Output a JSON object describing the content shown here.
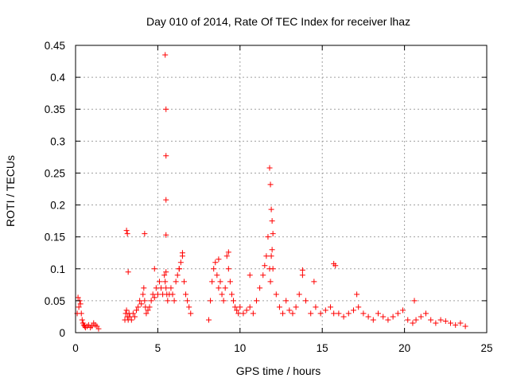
{
  "chart_data": {
    "type": "scatter",
    "title": "Day 010 of 2014, Rate Of TEC Index for receiver lhaz",
    "xlabel": "GPS time / hours",
    "ylabel": "ROTI / TECUs",
    "xlim": [
      0,
      25
    ],
    "ylim": [
      0,
      0.45
    ],
    "xticks": [
      "0",
      "5",
      "10",
      "15",
      "20",
      "25"
    ],
    "yticks": [
      "0",
      "0.05",
      "0.1",
      "0.15",
      "0.2",
      "0.25",
      "0.3",
      "0.35",
      "0.4",
      "0.45"
    ],
    "grid": true,
    "legend": "none",
    "marker": "+",
    "color": "#ff0000",
    "series": [
      {
        "x": [
          0.1,
          0.15,
          0.2,
          0.25,
          0.3,
          0.35,
          0.4,
          0.45,
          0.5,
          0.55,
          0.6,
          0.7,
          0.8,
          0.9,
          1.0,
          1.1,
          1.2,
          1.3,
          1.4,
          3.0,
          3.05,
          3.1,
          3.15,
          3.2,
          3.25,
          3.3,
          3.4,
          3.5,
          3.6,
          3.7,
          3.8,
          3.9,
          4.0,
          4.1,
          4.15,
          4.2,
          4.25,
          4.3,
          4.4,
          4.5,
          4.6,
          4.7,
          4.8,
          4.9,
          5.0,
          5.1,
          5.2,
          5.3,
          5.4,
          5.45,
          5.5,
          5.55,
          5.6,
          5.7,
          5.8,
          5.9,
          6.0,
          6.1,
          6.2,
          6.3,
          6.4,
          6.5,
          6.6,
          6.7,
          6.8,
          6.9,
          7.0,
          8.1,
          8.2,
          8.3,
          8.4,
          8.5,
          8.6,
          8.7,
          8.8,
          8.9,
          9.0,
          9.1,
          9.2,
          9.3,
          9.4,
          9.5,
          9.6,
          9.7,
          9.8,
          9.9,
          10.0,
          10.2,
          10.4,
          10.6,
          10.8,
          11.0,
          11.2,
          11.4,
          11.6,
          11.7,
          11.8,
          11.85,
          11.9,
          11.95,
          12.0,
          12.2,
          12.4,
          12.6,
          12.8,
          13.0,
          13.2,
          13.4,
          13.6,
          13.8,
          14.0,
          14.3,
          14.6,
          14.9,
          15.2,
          15.5,
          15.7,
          15.8,
          16.0,
          16.3,
          16.6,
          16.9,
          17.2,
          17.5,
          17.8,
          18.1,
          18.4,
          18.7,
          19.0,
          19.3,
          19.6,
          19.9,
          20.2,
          20.5,
          20.7,
          21.0,
          21.3,
          21.6,
          21.9,
          22.2,
          22.5,
          22.8,
          23.1,
          23.4,
          23.7,
          3.1,
          3.15,
          4.2,
          5.45,
          5.5,
          5.5,
          5.5,
          5.5,
          5.5,
          6.5,
          11.8,
          11.85,
          11.9,
          11.95,
          12.0,
          13.8,
          15.7,
          17.1,
          20.6,
          9.3,
          8.7,
          3.2,
          4.8,
          6.3,
          10.6,
          11.5,
          14.5
        ],
        "y": [
          0.03,
          0.055,
          0.04,
          0.05,
          0.045,
          0.03,
          0.02,
          0.015,
          0.012,
          0.01,
          0.008,
          0.01,
          0.012,
          0.008,
          0.01,
          0.015,
          0.012,
          0.01,
          0.006,
          0.02,
          0.03,
          0.035,
          0.025,
          0.02,
          0.03,
          0.025,
          0.02,
          0.03,
          0.025,
          0.035,
          0.04,
          0.05,
          0.045,
          0.06,
          0.07,
          0.05,
          0.04,
          0.03,
          0.035,
          0.04,
          0.05,
          0.06,
          0.055,
          0.07,
          0.06,
          0.08,
          0.07,
          0.06,
          0.09,
          0.08,
          0.07,
          0.06,
          0.05,
          0.06,
          0.07,
          0.06,
          0.05,
          0.08,
          0.09,
          0.1,
          0.11,
          0.12,
          0.08,
          0.06,
          0.05,
          0.04,
          0.03,
          0.02,
          0.05,
          0.08,
          0.1,
          0.11,
          0.09,
          0.07,
          0.08,
          0.06,
          0.05,
          0.07,
          0.12,
          0.1,
          0.08,
          0.06,
          0.05,
          0.04,
          0.035,
          0.03,
          0.04,
          0.03,
          0.035,
          0.04,
          0.03,
          0.05,
          0.07,
          0.09,
          0.12,
          0.15,
          0.1,
          0.08,
          0.12,
          0.13,
          0.1,
          0.06,
          0.04,
          0.03,
          0.05,
          0.035,
          0.03,
          0.04,
          0.06,
          0.09,
          0.05,
          0.03,
          0.04,
          0.03,
          0.035,
          0.04,
          0.03,
          0.105,
          0.03,
          0.025,
          0.03,
          0.035,
          0.04,
          0.03,
          0.025,
          0.02,
          0.03,
          0.025,
          0.02,
          0.025,
          0.03,
          0.035,
          0.02,
          0.015,
          0.02,
          0.025,
          0.03,
          0.02,
          0.015,
          0.02,
          0.018,
          0.015,
          0.012,
          0.015,
          0.01,
          0.16,
          0.155,
          0.155,
          0.435,
          0.35,
          0.277,
          0.208,
          0.153,
          0.095,
          0.125,
          0.258,
          0.232,
          0.193,
          0.175,
          0.155,
          0.098,
          0.108,
          0.06,
          0.05,
          0.126,
          0.115,
          0.095,
          0.1,
          0.1,
          0.09,
          0.105,
          0.08
        ]
      }
    ]
  }
}
